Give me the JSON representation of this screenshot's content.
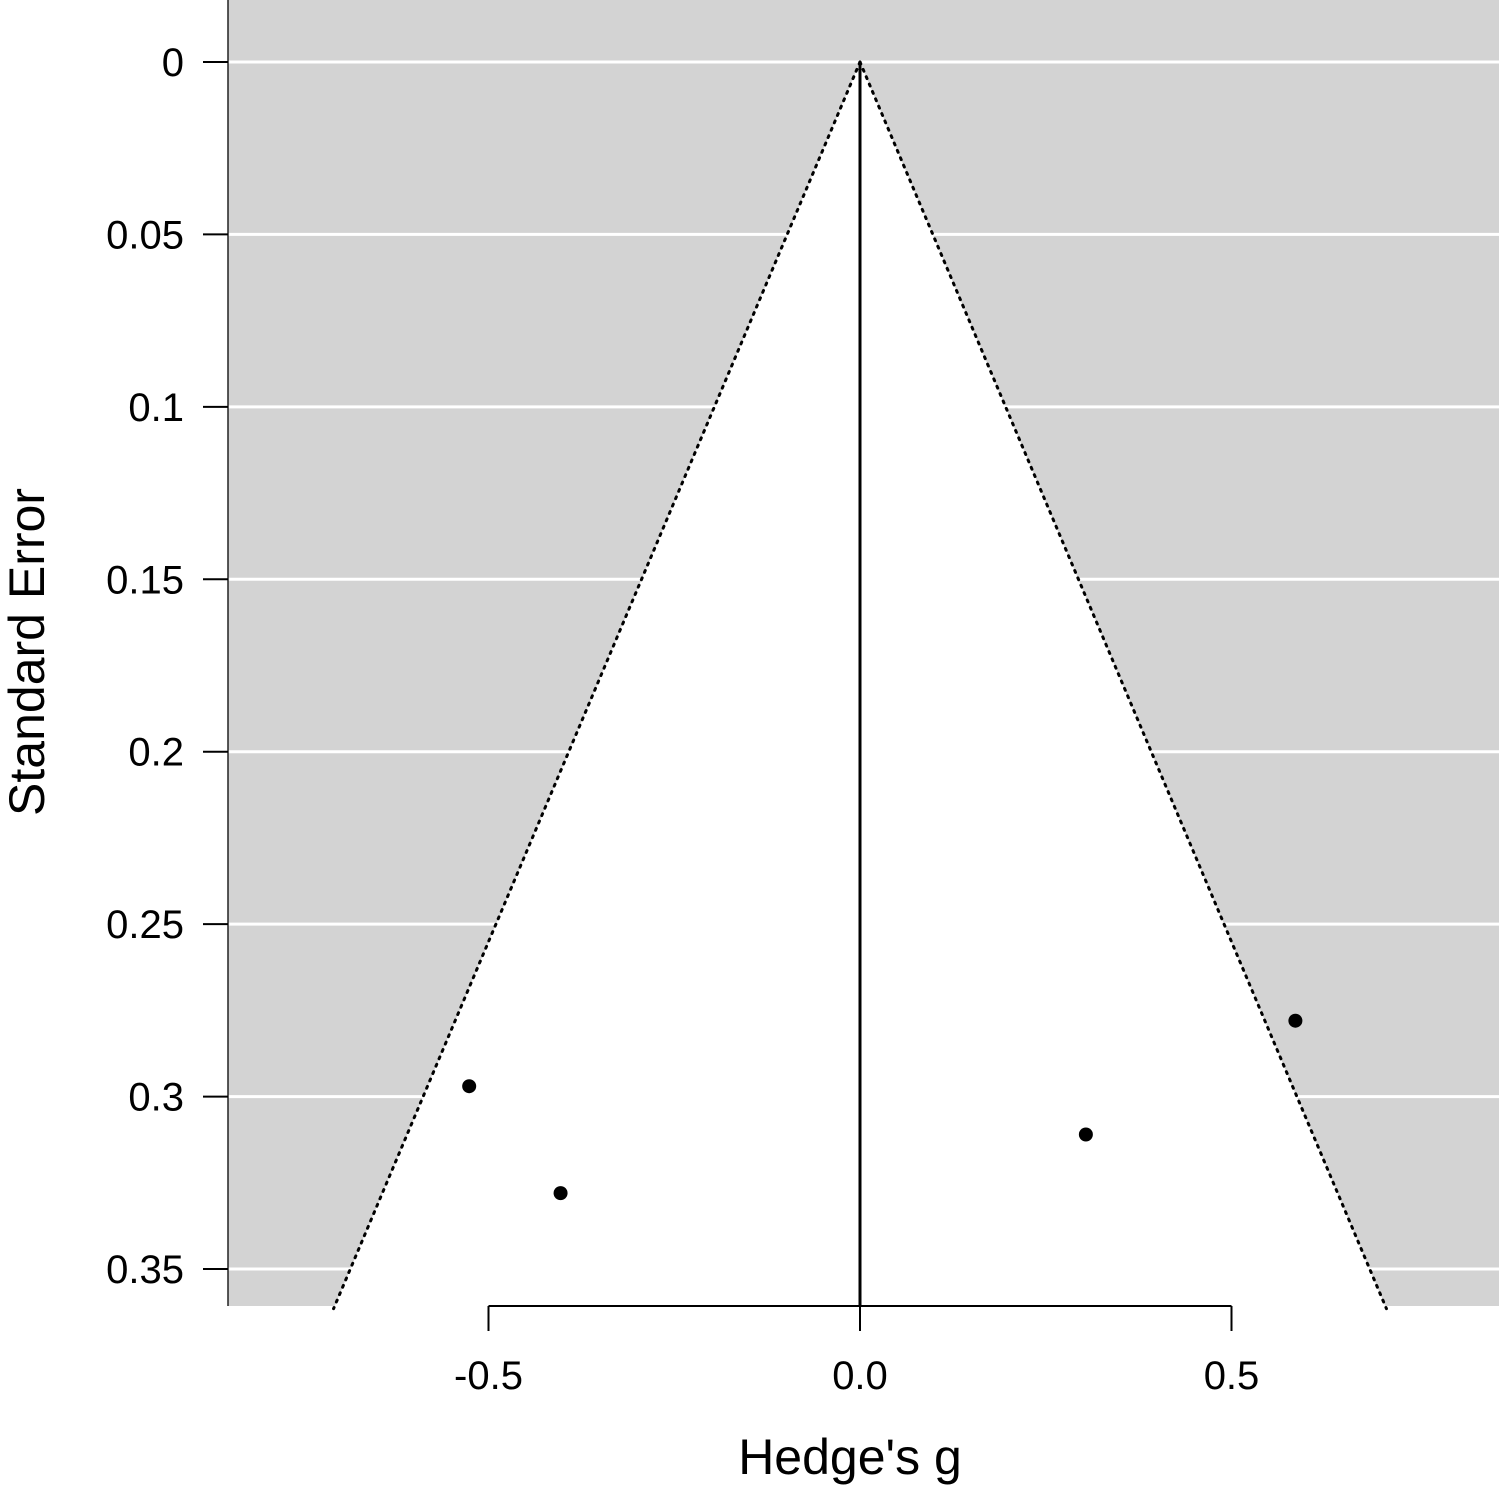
{
  "chart_data": {
    "type": "scatter",
    "subtype": "funnel-plot",
    "title": "",
    "xlabel": "Hedge's g",
    "ylabel": "Standard Error",
    "xlim": [
      -0.86,
      0.86
    ],
    "ylim": [
      0.3615,
      0
    ],
    "x_ticks": [
      {
        "value": -0.5,
        "label": "-0.5"
      },
      {
        "value": 0.0,
        "label": "0.0"
      },
      {
        "value": 0.5,
        "label": "0.5"
      }
    ],
    "y_ticks": [
      {
        "value": 0,
        "label": "0"
      },
      {
        "value": 0.05,
        "label": "0.05"
      },
      {
        "value": 0.1,
        "label": "0.1"
      },
      {
        "value": 0.15,
        "label": "0.15"
      },
      {
        "value": 0.2,
        "label": "0.2"
      },
      {
        "value": 0.25,
        "label": "0.25"
      },
      {
        "value": 0.3,
        "label": "0.3"
      },
      {
        "value": 0.35,
        "label": "0.35"
      }
    ],
    "center_estimate": 0.0,
    "funnel_z": 1.96,
    "grid": true,
    "points": [
      {
        "x": -0.526,
        "y": 0.297
      },
      {
        "x": -0.403,
        "y": 0.328
      },
      {
        "x": 0.304,
        "y": 0.311
      },
      {
        "x": 0.586,
        "y": 0.278
      }
    ],
    "colors": {
      "background_region": "#d3d3d3",
      "funnel_region": "#ffffff",
      "gridline": "#ffffff",
      "points": "#000000",
      "lines": "#000000"
    }
  }
}
